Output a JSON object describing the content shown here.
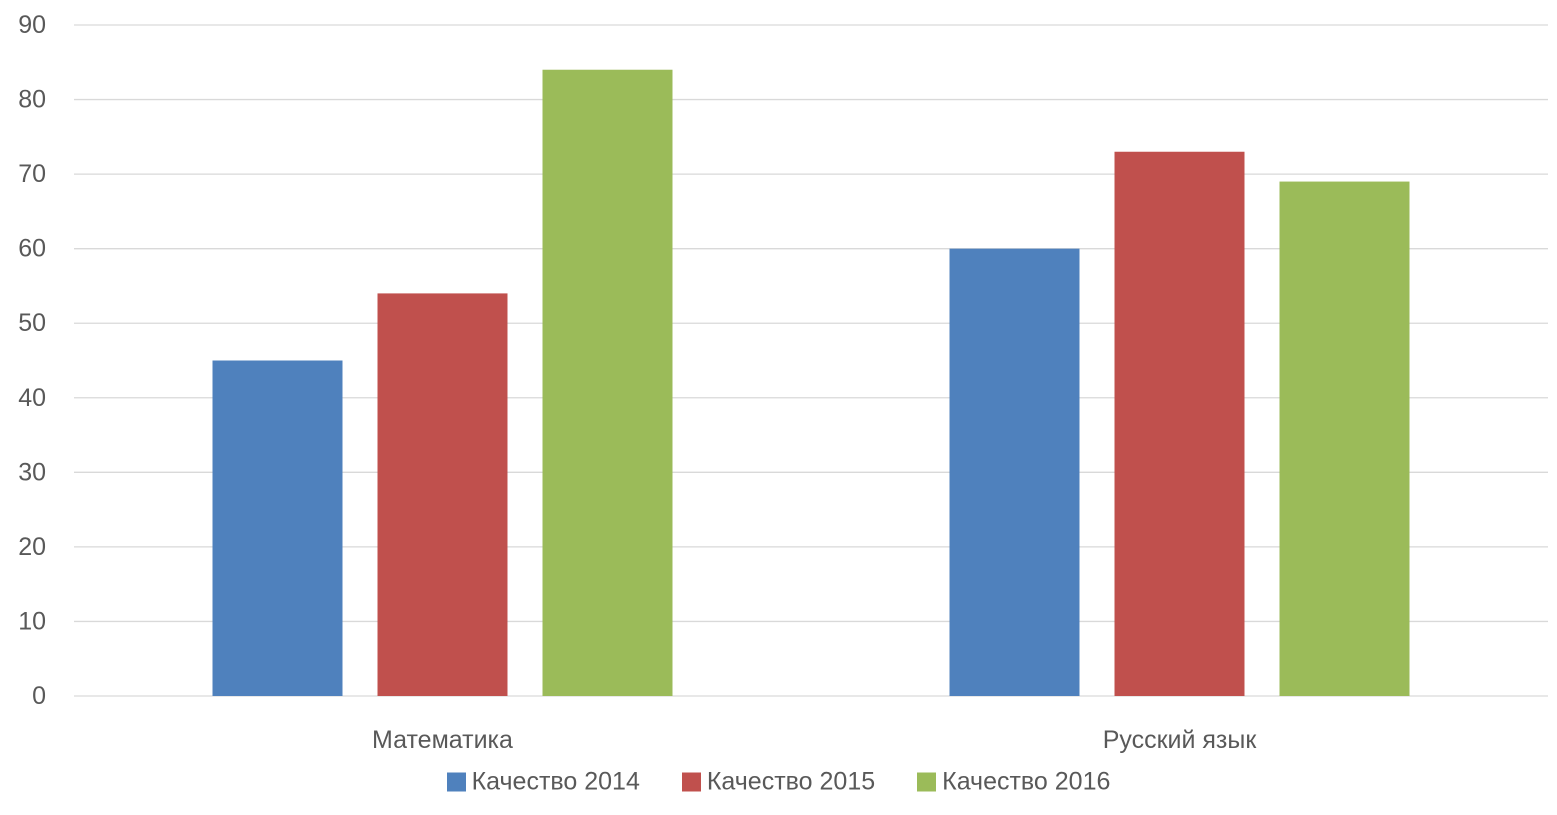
{
  "chart_data": {
    "type": "bar",
    "categories": [
      "Математика",
      "Русский язык"
    ],
    "series": [
      {
        "name": "Качество 2014",
        "color": "#4F81BD",
        "values": [
          45,
          60
        ]
      },
      {
        "name": "Качество 2015",
        "color": "#C0504D",
        "values": [
          54,
          73
        ]
      },
      {
        "name": "Качество 2016",
        "color": "#9BBB59",
        "values": [
          84,
          69
        ]
      }
    ],
    "ylim": [
      0,
      90
    ],
    "yticks": [
      0,
      10,
      20,
      30,
      40,
      50,
      60,
      70,
      80,
      90
    ],
    "ytick_labels": [
      "0",
      "10",
      "20",
      "30",
      "40",
      "50",
      "60",
      "70",
      "80",
      "90"
    ],
    "grid": true,
    "legend_position": "bottom",
    "gridline_color": "#D9D9D9",
    "text_color": "#595959"
  }
}
